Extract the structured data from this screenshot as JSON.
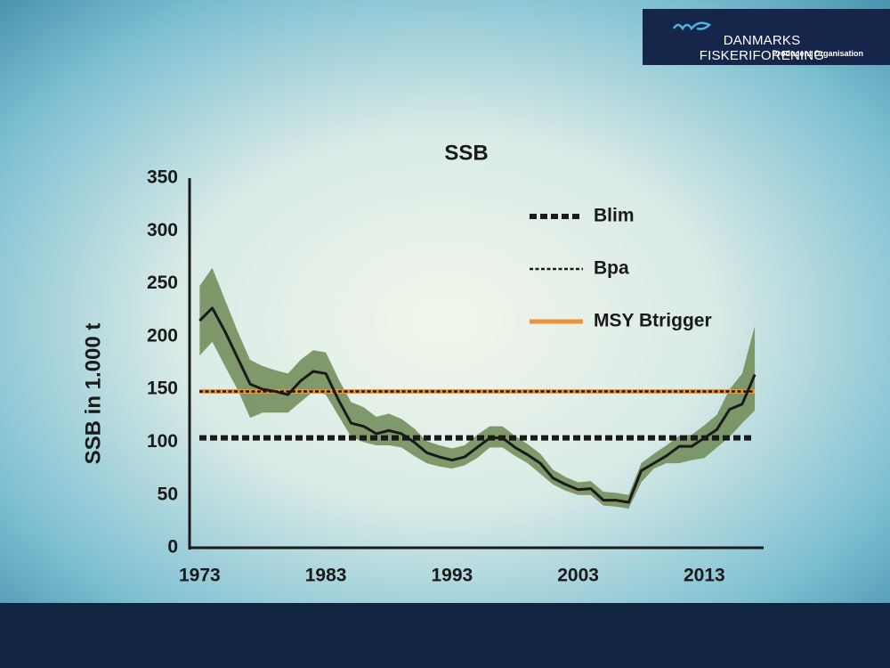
{
  "logo": {
    "name": "DANMARKS FISKERIFORENING",
    "subtitle": "Producent Organisation"
  },
  "chart_data": {
    "type": "line",
    "title": "SSB",
    "y_label": "SSB in 1.000 t",
    "x": [
      1973,
      1974,
      1975,
      1976,
      1977,
      1978,
      1979,
      1980,
      1981,
      1982,
      1983,
      1984,
      1985,
      1986,
      1987,
      1988,
      1989,
      1990,
      1991,
      1992,
      1993,
      1994,
      1995,
      1996,
      1997,
      1998,
      1999,
      2000,
      2001,
      2002,
      2003,
      2004,
      2005,
      2006,
      2007,
      2008,
      2009,
      2010,
      2011,
      2012,
      2013,
      2014,
      2015,
      2016,
      2017
    ],
    "series": [
      {
        "color": "#1a1a1a",
        "values": [
          215,
          227,
          205,
          180,
          155,
          150,
          148,
          145,
          158,
          167,
          165,
          140,
          118,
          115,
          108,
          111,
          108,
          100,
          90,
          86,
          83,
          86,
          95,
          104,
          104,
          95,
          88,
          80,
          66,
          60,
          55,
          56,
          45,
          45,
          43,
          73,
          80,
          87,
          96,
          96,
          104,
          112,
          131,
          136,
          164
        ]
      }
    ],
    "band": {
      "color": "#6f8a55",
      "upper": [
        248,
        265,
        235,
        205,
        178,
        172,
        168,
        165,
        178,
        187,
        185,
        160,
        138,
        133,
        124,
        127,
        122,
        113,
        101,
        97,
        94,
        97,
        107,
        115,
        115,
        106,
        98,
        89,
        74,
        67,
        62,
        63,
        53,
        52,
        50,
        80,
        89,
        97,
        106,
        107,
        116,
        126,
        150,
        165,
        210
      ],
      "lower": [
        182,
        195,
        172,
        150,
        123,
        128,
        128,
        128,
        138,
        148,
        145,
        125,
        105,
        100,
        97,
        97,
        95,
        87,
        80,
        77,
        75,
        78,
        85,
        95,
        95,
        87,
        80,
        70,
        60,
        54,
        50,
        50,
        40,
        39,
        37,
        62,
        75,
        80,
        80,
        83,
        85,
        95,
        105,
        118,
        130
      ]
    },
    "reference_lines": [
      {
        "name": "Blim",
        "value": 104,
        "style": "dashed",
        "color": "#1a1a1a"
      },
      {
        "name": "Bpa",
        "value": 148,
        "style": "dotted",
        "color": "#1a1a1a"
      },
      {
        "name": "MSY Btrigger",
        "value": 148,
        "style": "solid",
        "color": "#f0923a"
      }
    ],
    "xlim": [
      1972.2,
      2017.7
    ],
    "xticks": [
      1973,
      1983,
      1993,
      2003,
      2013
    ],
    "ylim": [
      0,
      350
    ],
    "yticks": [
      0,
      50,
      100,
      150,
      200,
      250,
      300,
      350
    ]
  }
}
